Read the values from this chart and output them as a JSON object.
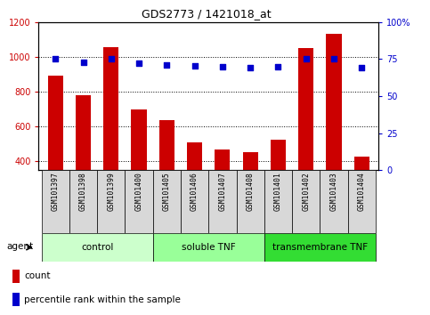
{
  "title": "GDS2773 / 1421018_at",
  "categories": [
    "GSM101397",
    "GSM101398",
    "GSM101399",
    "GSM101400",
    "GSM101405",
    "GSM101406",
    "GSM101407",
    "GSM101408",
    "GSM101401",
    "GSM101402",
    "GSM101403",
    "GSM101404"
  ],
  "bar_values": [
    890,
    780,
    1055,
    700,
    638,
    510,
    470,
    453,
    522,
    1050,
    1130,
    430
  ],
  "scatter_values": [
    75,
    73,
    75,
    72,
    71,
    70.5,
    70,
    69.5,
    70,
    75,
    75,
    69
  ],
  "bar_color": "#cc0000",
  "scatter_color": "#0000cc",
  "ylim_left": [
    350,
    1200
  ],
  "ylim_right": [
    0,
    100
  ],
  "yticks_left": [
    400,
    600,
    800,
    1000,
    1200
  ],
  "yticks_right": [
    0,
    25,
    50,
    75,
    100
  ],
  "groups": [
    {
      "label": "control",
      "start": 0,
      "end": 3,
      "color": "#ccffcc"
    },
    {
      "label": "soluble TNF",
      "start": 4,
      "end": 7,
      "color": "#99ff99"
    },
    {
      "label": "transmembrane TNF",
      "start": 8,
      "end": 11,
      "color": "#33dd33"
    }
  ],
  "agent_label": "agent",
  "legend_count_label": "count",
  "legend_pct_label": "percentile rank within the sample",
  "grid_color": "#000000",
  "bar_bottom": 350,
  "ticklabel_bg": "#d8d8d8",
  "fig_width": 4.83,
  "fig_height": 3.54,
  "dpi": 100
}
